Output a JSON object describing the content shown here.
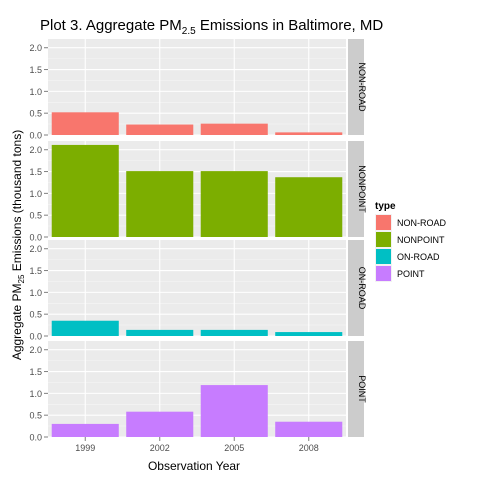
{
  "chart_data": {
    "type": "bar",
    "title_main": "Plot 3. Aggregate PM",
    "title_sub": "2.5",
    "title_rest": " Emissions in Baltimore, MD",
    "xlabel": "Observation Year",
    "ylabel_main": "Aggregate PM",
    "ylabel_sub": "25",
    "ylabel_rest": " Emissions (thousand tons)",
    "categories": [
      "1999",
      "2002",
      "2005",
      "2008"
    ],
    "y_ticks": [
      "0.0",
      "0.5",
      "1.0",
      "1.5",
      "2.0"
    ],
    "ylim": [
      0,
      2.2
    ],
    "grid": true,
    "legend_position": "right",
    "legend_title": "type",
    "series": [
      {
        "name": "NON-ROAD",
        "color": "#f8766d",
        "values": [
          0.52,
          0.24,
          0.26,
          0.06
        ]
      },
      {
        "name": "NONPOINT",
        "color": "#7cae00",
        "values": [
          2.11,
          1.51,
          1.51,
          1.37
        ]
      },
      {
        "name": "ON-ROAD",
        "color": "#00bfc4",
        "values": [
          0.35,
          0.14,
          0.14,
          0.09
        ]
      },
      {
        "name": "POINT",
        "color": "#c77cff",
        "values": [
          0.3,
          0.58,
          1.19,
          0.35
        ]
      }
    ]
  }
}
